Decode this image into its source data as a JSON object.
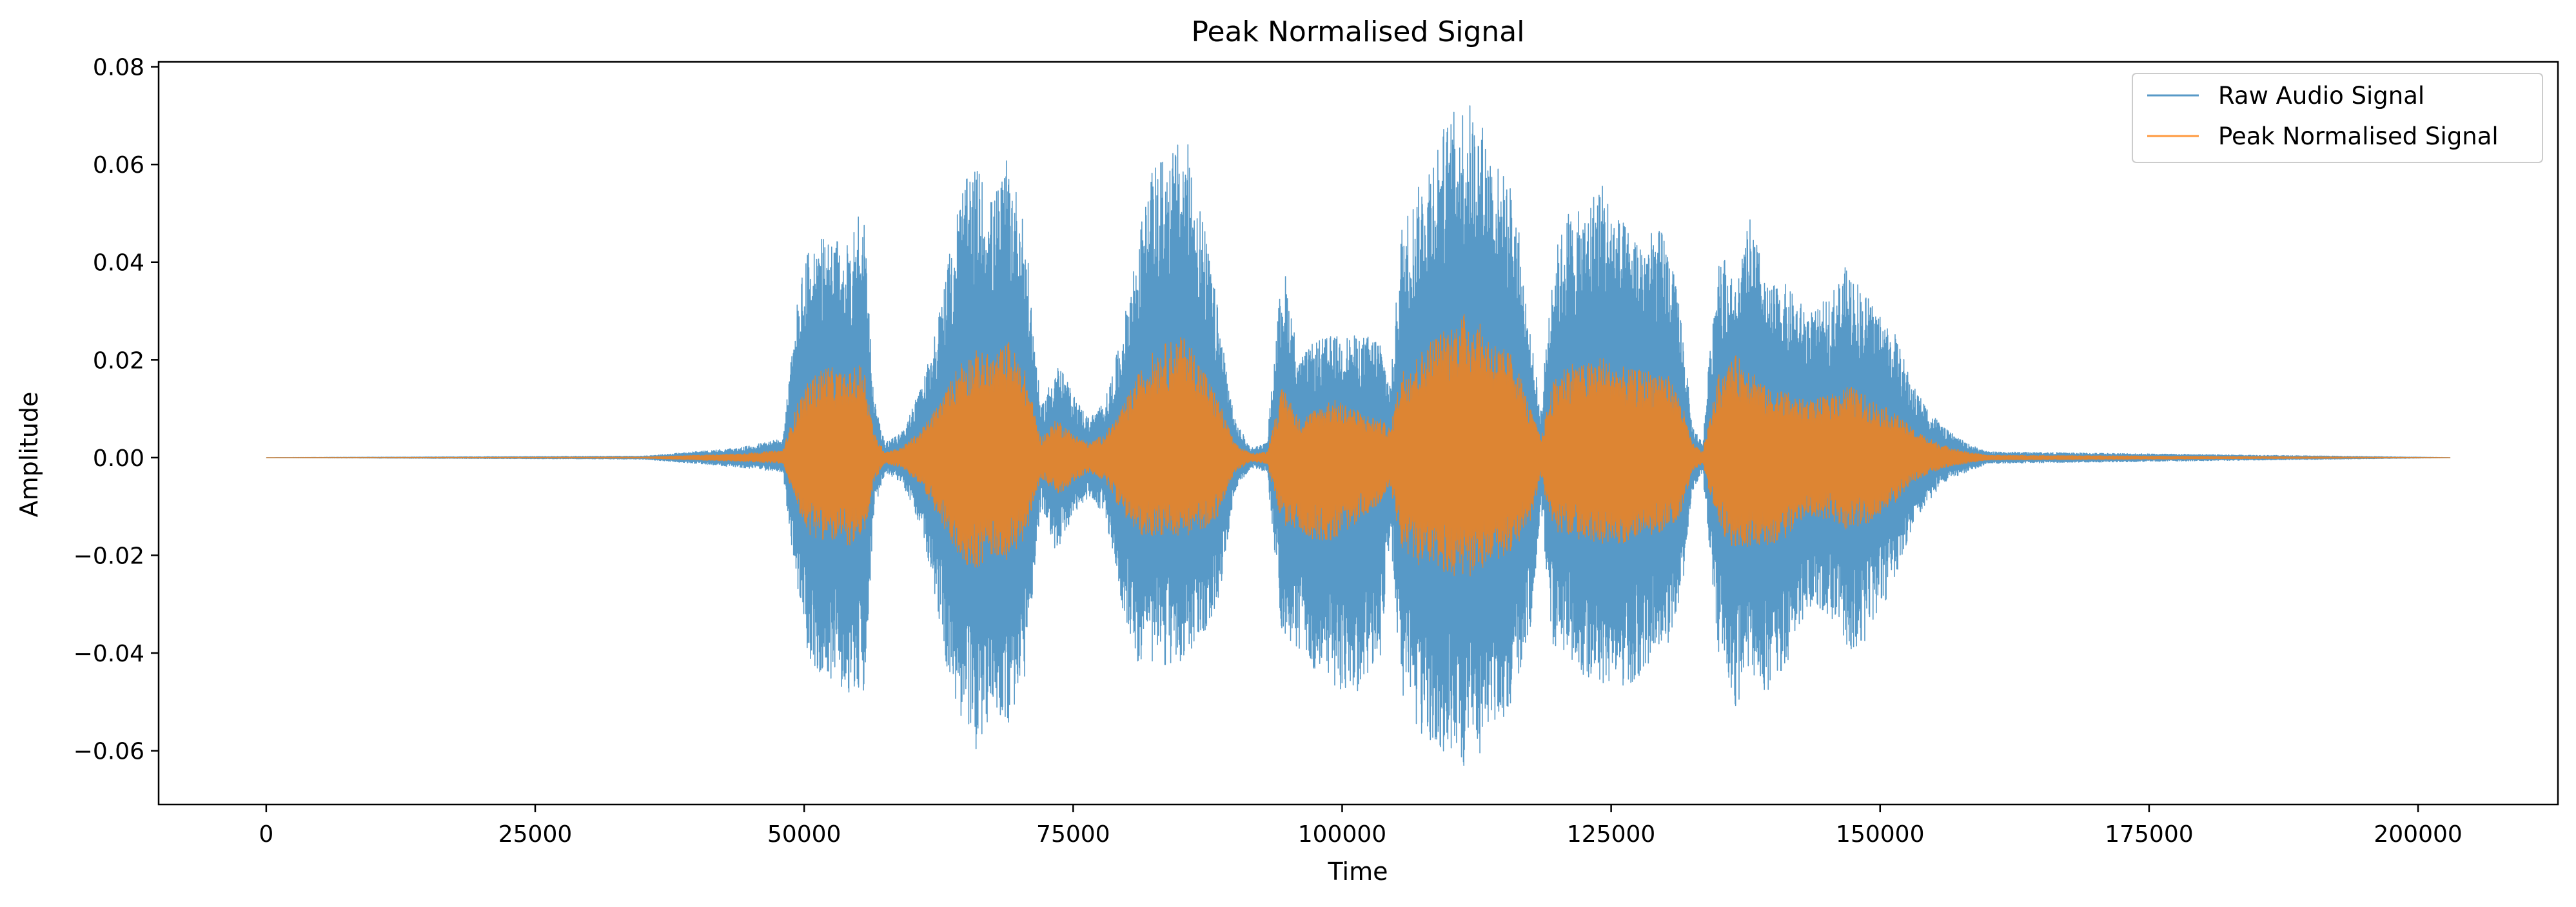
{
  "chart_data": {
    "type": "line",
    "title": "Peak Normalised Signal",
    "xlabel": "Time",
    "ylabel": "Amplitude",
    "xlim": [
      -10000,
      213000
    ],
    "ylim": [
      -0.071,
      0.081
    ],
    "x_ticks": [
      0,
      25000,
      50000,
      75000,
      100000,
      125000,
      150000,
      175000,
      200000
    ],
    "x_tick_labels": [
      "0",
      "25000",
      "50000",
      "75000",
      "100000",
      "125000",
      "150000",
      "175000",
      "200000"
    ],
    "y_ticks": [
      -0.06,
      -0.04,
      -0.02,
      0.0,
      0.02,
      0.04,
      0.06,
      0.08
    ],
    "y_tick_labels": [
      "−0.06",
      "−0.04",
      "−0.02",
      "0.00",
      "0.02",
      "0.04",
      "0.06",
      "0.08"
    ],
    "grid": false,
    "legend_position": "top-right",
    "x_range": [
      0,
      203000
    ],
    "series": [
      {
        "name": "Raw Audio Signal",
        "color": "#1f77b4",
        "envelope": {
          "x": [
            0,
            35000,
            44000,
            48000,
            49500,
            50500,
            52000,
            54000,
            55500,
            56500,
            57500,
            59000,
            61000,
            63000,
            64500,
            66000,
            67500,
            69000,
            70500,
            72000,
            73500,
            75000,
            76500,
            78000,
            79500,
            81000,
            82500,
            84000,
            85500,
            87000,
            88500,
            90000,
            91500,
            93000,
            94500,
            96000,
            97500,
            99000,
            100500,
            102000,
            103500,
            104500,
            105500,
            107000,
            108500,
            110000,
            111500,
            113000,
            114500,
            116000,
            117500,
            118500,
            119500,
            121000,
            122500,
            124000,
            125500,
            127000,
            128500,
            130000,
            131500,
            132500,
            133500,
            135000,
            136500,
            138000,
            139500,
            141000,
            142500,
            144000,
            145500,
            147000,
            148500,
            150000,
            151500,
            153000,
            154500,
            156000,
            158000,
            160000,
            203000
          ],
          "upper": [
            0.0,
            0.0003,
            0.002,
            0.004,
            0.035,
            0.044,
            0.045,
            0.044,
            0.054,
            0.012,
            0.003,
            0.005,
            0.015,
            0.035,
            0.055,
            0.06,
            0.053,
            0.062,
            0.048,
            0.01,
            0.02,
            0.013,
            0.008,
            0.012,
            0.025,
            0.045,
            0.06,
            0.063,
            0.066,
            0.05,
            0.03,
            0.008,
            0.002,
            0.003,
            0.041,
            0.02,
            0.024,
            0.025,
            0.025,
            0.025,
            0.025,
            0.015,
            0.048,
            0.055,
            0.065,
            0.07,
            0.074,
            0.069,
            0.06,
            0.055,
            0.025,
            0.01,
            0.04,
            0.051,
            0.05,
            0.058,
            0.05,
            0.046,
            0.046,
            0.047,
            0.03,
            0.007,
            0.003,
            0.045,
            0.035,
            0.05,
            0.035,
            0.036,
            0.032,
            0.03,
            0.034,
            0.04,
            0.034,
            0.03,
            0.025,
            0.015,
            0.01,
            0.006,
            0.003,
            0.0012,
            0.0
          ],
          "lower": [
            0.0,
            -0.0003,
            -0.002,
            -0.003,
            -0.03,
            -0.042,
            -0.045,
            -0.048,
            -0.049,
            -0.012,
            -0.003,
            -0.005,
            -0.015,
            -0.04,
            -0.055,
            -0.06,
            -0.052,
            -0.055,
            -0.045,
            -0.01,
            -0.02,
            -0.012,
            -0.008,
            -0.012,
            -0.03,
            -0.042,
            -0.042,
            -0.043,
            -0.041,
            -0.038,
            -0.03,
            -0.007,
            -0.002,
            -0.003,
            -0.038,
            -0.04,
            -0.045,
            -0.046,
            -0.05,
            -0.047,
            -0.042,
            -0.015,
            -0.05,
            -0.057,
            -0.06,
            -0.062,
            -0.064,
            -0.06,
            -0.055,
            -0.05,
            -0.035,
            -0.01,
            -0.038,
            -0.042,
            -0.045,
            -0.047,
            -0.047,
            -0.046,
            -0.043,
            -0.04,
            -0.03,
            -0.007,
            -0.003,
            -0.04,
            -0.051,
            -0.047,
            -0.048,
            -0.045,
            -0.034,
            -0.03,
            -0.033,
            -0.04,
            -0.038,
            -0.032,
            -0.024,
            -0.014,
            -0.009,
            -0.005,
            -0.003,
            -0.0012,
            0.0
          ]
        }
      },
      {
        "name": "Peak Normalised Signal",
        "color": "#ff7f0e",
        "envelope": {
          "x": [
            0,
            35000,
            44000,
            48000,
            49500,
            50500,
            52000,
            54000,
            55500,
            56500,
            57500,
            59000,
            61000,
            63000,
            64500,
            66000,
            67500,
            69000,
            70500,
            72000,
            73500,
            75000,
            76500,
            78000,
            79500,
            81000,
            82500,
            84000,
            85500,
            87000,
            88500,
            90000,
            91500,
            93000,
            94500,
            96000,
            97500,
            99000,
            100500,
            102000,
            103500,
            104500,
            105500,
            107000,
            108500,
            110000,
            111500,
            113000,
            114500,
            116000,
            117500,
            118500,
            119500,
            121000,
            122500,
            124000,
            125500,
            127000,
            128500,
            130000,
            131500,
            132500,
            133500,
            135000,
            136500,
            138000,
            139500,
            141000,
            142500,
            144000,
            145500,
            147000,
            148500,
            150000,
            151500,
            153000,
            154500,
            156000,
            158000,
            160000,
            203000
          ],
          "upper": [
            0.0,
            0.0001,
            0.0008,
            0.0015,
            0.012,
            0.016,
            0.019,
            0.017,
            0.02,
            0.005,
            0.0012,
            0.002,
            0.006,
            0.013,
            0.02,
            0.022,
            0.021,
            0.024,
            0.018,
            0.004,
            0.008,
            0.005,
            0.003,
            0.005,
            0.01,
            0.017,
            0.022,
            0.024,
            0.025,
            0.019,
            0.012,
            0.003,
            0.0008,
            0.0012,
            0.015,
            0.008,
            0.01,
            0.012,
            0.011,
            0.009,
            0.008,
            0.006,
            0.018,
            0.021,
            0.025,
            0.027,
            0.03,
            0.027,
            0.023,
            0.021,
            0.01,
            0.004,
            0.015,
            0.02,
            0.019,
            0.021,
            0.019,
            0.018,
            0.018,
            0.018,
            0.012,
            0.003,
            0.0012,
            0.017,
            0.021,
            0.019,
            0.014,
            0.014,
            0.012,
            0.012,
            0.013,
            0.015,
            0.013,
            0.011,
            0.009,
            0.006,
            0.004,
            0.0025,
            0.0012,
            0.0005,
            0.0
          ],
          "lower": [
            0.0,
            -0.0001,
            -0.0008,
            -0.0012,
            -0.011,
            -0.016,
            -0.017,
            -0.018,
            -0.018,
            -0.005,
            -0.0012,
            -0.002,
            -0.006,
            -0.015,
            -0.021,
            -0.023,
            -0.02,
            -0.021,
            -0.017,
            -0.004,
            -0.008,
            -0.005,
            -0.003,
            -0.005,
            -0.011,
            -0.016,
            -0.016,
            -0.016,
            -0.016,
            -0.015,
            -0.012,
            -0.003,
            -0.0008,
            -0.0012,
            -0.014,
            -0.015,
            -0.017,
            -0.017,
            -0.015,
            -0.012,
            -0.01,
            -0.006,
            -0.019,
            -0.022,
            -0.023,
            -0.024,
            -0.025,
            -0.023,
            -0.021,
            -0.019,
            -0.013,
            -0.004,
            -0.015,
            -0.016,
            -0.017,
            -0.018,
            -0.018,
            -0.017,
            -0.016,
            -0.015,
            -0.012,
            -0.003,
            -0.0012,
            -0.015,
            -0.019,
            -0.018,
            -0.018,
            -0.017,
            -0.013,
            -0.012,
            -0.013,
            -0.015,
            -0.014,
            -0.012,
            -0.009,
            -0.005,
            -0.0035,
            -0.002,
            -0.0012,
            -0.0005,
            0.0
          ]
        }
      }
    ]
  }
}
